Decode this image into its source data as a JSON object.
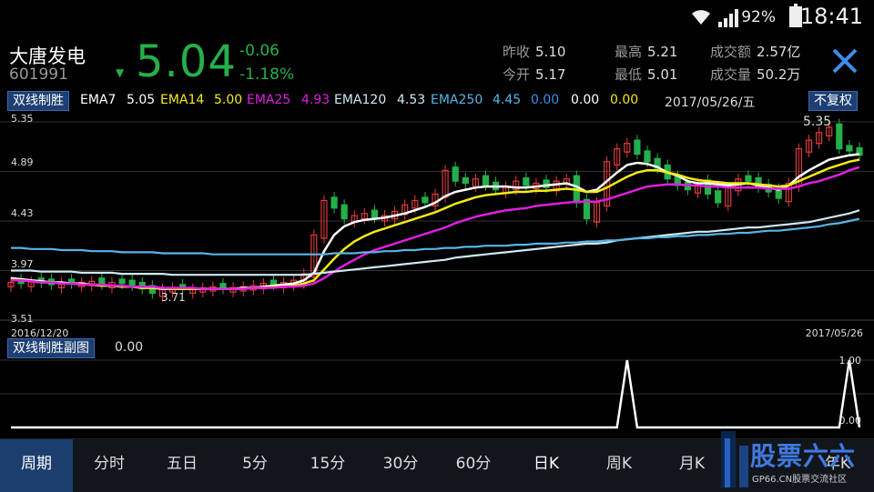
{
  "status_bar": {
    "battery": "92%",
    "time": "18:41"
  },
  "stock": {
    "name": "大唐发电",
    "code": "601991",
    "price": "5.04",
    "change": "-0.06",
    "change_pct": "-1.18%"
  },
  "quote": {
    "prev_close_label": "昨收",
    "prev_close": "5.10",
    "open_label": "今开",
    "open": "5.17",
    "high_label": "最高",
    "high": "5.21",
    "low_label": "最低",
    "low": "5.01",
    "amount_label": "成交额",
    "amount": "2.57亿",
    "volume_label": "成交量",
    "volume": "50.2万"
  },
  "indicator_bar": {
    "name": "双线制胜",
    "ema7_label": "EMA7",
    "ema7": "5.05",
    "ema14_label": "EMA14",
    "ema14": "5.00",
    "ema25_label": "EMA25",
    "ema25": "4.93",
    "ema120_label": "EMA120",
    "ema120": "4.53",
    "ema250_label": "EMA250",
    "ema250": "4.45",
    "extra1": "0.00",
    "extra2": "0.00",
    "extra3": "0.00",
    "date": "2017/05/26/五",
    "adjust_button": "不复权"
  },
  "colors": {
    "up": "#e03b3b",
    "down": "#24b04a",
    "ema7": "#ffffff",
    "ema14": "#f5ea14",
    "ema25": "#e01ee0",
    "ema120": "#cfe9f3",
    "ema250": "#58b4e8",
    "accent": "#3f8ee8"
  },
  "chart_data": [
    {
      "type": "candlestick",
      "y_ticks": [
        "5.35",
        "4.89",
        "4.43",
        "3.97",
        "3.51"
      ],
      "ylim": [
        3.51,
        5.35
      ],
      "x_start": "2016/12/20",
      "x_end": "2017/05/26",
      "low_annotation": "3.71",
      "high_annotation": "5.35",
      "series": [
        {
          "name": "EMA7",
          "values": [
            3.9,
            3.89,
            3.88,
            3.87,
            3.86,
            3.86,
            3.85,
            3.85,
            3.84,
            3.83,
            3.83,
            3.82,
            3.82,
            3.81,
            3.81,
            3.8,
            3.8,
            3.8,
            3.8,
            3.8,
            3.8,
            3.8,
            3.8,
            3.81,
            3.81,
            3.82,
            3.83,
            3.84,
            3.85,
            3.88,
            3.95,
            4.15,
            4.3,
            4.38,
            4.42,
            4.44,
            4.45,
            4.46,
            4.48,
            4.5,
            4.53,
            4.56,
            4.6,
            4.66,
            4.7,
            4.72,
            4.74,
            4.75,
            4.75,
            4.75,
            4.74,
            4.74,
            4.75,
            4.76,
            4.77,
            4.78,
            4.75,
            4.7,
            4.72,
            4.8,
            4.88,
            4.95,
            4.97,
            4.96,
            4.93,
            4.88,
            4.85,
            4.8,
            4.78,
            4.78,
            4.77,
            4.76,
            4.77,
            4.78,
            4.76,
            4.74,
            4.72,
            4.76,
            4.84,
            4.9,
            4.95,
            5.0,
            5.02,
            5.04,
            5.05
          ]
        },
        {
          "name": "EMA14",
          "values": [
            3.89,
            3.88,
            3.87,
            3.86,
            3.86,
            3.85,
            3.85,
            3.84,
            3.84,
            3.83,
            3.83,
            3.82,
            3.82,
            3.81,
            3.81,
            3.81,
            3.8,
            3.8,
            3.8,
            3.8,
            3.8,
            3.8,
            3.8,
            3.8,
            3.81,
            3.81,
            3.82,
            3.82,
            3.83,
            3.85,
            3.88,
            3.98,
            4.08,
            4.17,
            4.24,
            4.29,
            4.33,
            4.36,
            4.39,
            4.42,
            4.45,
            4.48,
            4.51,
            4.55,
            4.59,
            4.62,
            4.65,
            4.67,
            4.68,
            4.69,
            4.7,
            4.7,
            4.71,
            4.71,
            4.72,
            4.73,
            4.72,
            4.7,
            4.7,
            4.74,
            4.79,
            4.84,
            4.88,
            4.9,
            4.9,
            4.88,
            4.86,
            4.83,
            4.81,
            4.8,
            4.79,
            4.78,
            4.78,
            4.78,
            4.77,
            4.76,
            4.75,
            4.76,
            4.8,
            4.84,
            4.88,
            4.92,
            4.95,
            4.98,
            5.0
          ]
        },
        {
          "name": "EMA25",
          "values": [
            3.88,
            3.88,
            3.87,
            3.86,
            3.86,
            3.85,
            3.85,
            3.84,
            3.84,
            3.84,
            3.83,
            3.83,
            3.82,
            3.82,
            3.82,
            3.81,
            3.81,
            3.81,
            3.81,
            3.8,
            3.8,
            3.8,
            3.8,
            3.8,
            3.81,
            3.81,
            3.81,
            3.82,
            3.82,
            3.83,
            3.85,
            3.9,
            3.96,
            4.02,
            4.07,
            4.12,
            4.16,
            4.19,
            4.22,
            4.25,
            4.28,
            4.31,
            4.34,
            4.37,
            4.41,
            4.44,
            4.47,
            4.49,
            4.51,
            4.53,
            4.54,
            4.55,
            4.57,
            4.58,
            4.59,
            4.6,
            4.61,
            4.61,
            4.61,
            4.63,
            4.66,
            4.69,
            4.72,
            4.75,
            4.76,
            4.77,
            4.77,
            4.76,
            4.76,
            4.75,
            4.75,
            4.74,
            4.74,
            4.74,
            4.74,
            4.73,
            4.73,
            4.73,
            4.75,
            4.78,
            4.8,
            4.83,
            4.86,
            4.9,
            4.93
          ]
        },
        {
          "name": "EMA120",
          "values": [
            3.97,
            3.97,
            3.97,
            3.96,
            3.96,
            3.96,
            3.96,
            3.95,
            3.95,
            3.95,
            3.95,
            3.94,
            3.94,
            3.94,
            3.94,
            3.94,
            3.93,
            3.93,
            3.93,
            3.93,
            3.93,
            3.93,
            3.93,
            3.93,
            3.93,
            3.93,
            3.93,
            3.93,
            3.93,
            3.93,
            3.94,
            3.95,
            3.96,
            3.97,
            3.98,
            3.99,
            4.0,
            4.01,
            4.02,
            4.03,
            4.04,
            4.05,
            4.06,
            4.07,
            4.09,
            4.1,
            4.11,
            4.12,
            4.13,
            4.14,
            4.15,
            4.16,
            4.17,
            4.18,
            4.19,
            4.2,
            4.21,
            4.22,
            4.22,
            4.23,
            4.25,
            4.26,
            4.27,
            4.28,
            4.29,
            4.3,
            4.31,
            4.32,
            4.33,
            4.33,
            4.34,
            4.35,
            4.36,
            4.37,
            4.37,
            4.38,
            4.39,
            4.4,
            4.41,
            4.42,
            4.44,
            4.46,
            4.48,
            4.5,
            4.53
          ]
        },
        {
          "name": "EMA250",
          "values": [
            4.18,
            4.18,
            4.17,
            4.17,
            4.17,
            4.16,
            4.16,
            4.16,
            4.15,
            4.15,
            4.15,
            4.14,
            4.14,
            4.14,
            4.14,
            4.13,
            4.13,
            4.13,
            4.13,
            4.13,
            4.12,
            4.12,
            4.12,
            4.12,
            4.12,
            4.12,
            4.12,
            4.12,
            4.12,
            4.12,
            4.12,
            4.12,
            4.13,
            4.13,
            4.13,
            4.14,
            4.14,
            4.15,
            4.15,
            4.16,
            4.16,
            4.17,
            4.17,
            4.18,
            4.18,
            4.19,
            4.19,
            4.2,
            4.2,
            4.2,
            4.21,
            4.21,
            4.22,
            4.22,
            4.22,
            4.23,
            4.23,
            4.24,
            4.24,
            4.25,
            4.25,
            4.26,
            4.27,
            4.27,
            4.28,
            4.28,
            4.29,
            4.29,
            4.3,
            4.3,
            4.31,
            4.31,
            4.32,
            4.32,
            4.33,
            4.34,
            4.34,
            4.35,
            4.36,
            4.37,
            4.38,
            4.4,
            4.41,
            4.43,
            4.45
          ]
        }
      ],
      "candles_close": [
        3.86,
        3.85,
        3.87,
        3.86,
        3.84,
        3.86,
        3.85,
        3.86,
        3.87,
        3.84,
        3.86,
        3.85,
        3.83,
        3.8,
        3.76,
        3.8,
        3.81,
        3.8,
        3.8,
        3.81,
        3.82,
        3.8,
        3.81,
        3.82,
        3.83,
        3.85,
        3.84,
        3.86,
        3.88,
        3.94,
        4.3,
        4.62,
        4.55,
        4.45,
        4.48,
        4.5,
        4.46,
        4.48,
        4.52,
        4.58,
        4.62,
        4.6,
        4.68,
        4.9,
        4.8,
        4.78,
        4.82,
        4.76,
        4.72,
        4.75,
        4.8,
        4.76,
        4.78,
        4.74,
        4.8,
        4.82,
        4.6,
        4.45,
        4.6,
        4.98,
        5.1,
        5.15,
        5.05,
        4.98,
        4.92,
        4.82,
        4.76,
        4.72,
        4.78,
        4.68,
        4.6,
        4.74,
        4.82,
        4.8,
        4.74,
        4.7,
        4.64,
        4.78,
        5.1,
        5.18,
        5.25,
        5.3,
        5.1,
        5.08,
        5.04
      ],
      "candles_up": [
        1,
        0,
        1,
        0,
        0,
        1,
        0,
        1,
        1,
        0,
        1,
        0,
        0,
        0,
        0,
        1,
        1,
        0,
        1,
        1,
        1,
        0,
        1,
        1,
        1,
        1,
        0,
        1,
        1,
        1,
        1,
        1,
        0,
        0,
        1,
        1,
        0,
        1,
        1,
        1,
        1,
        0,
        1,
        1,
        0,
        0,
        1,
        0,
        0,
        1,
        1,
        0,
        1,
        0,
        1,
        1,
        0,
        0,
        1,
        1,
        1,
        1,
        0,
        0,
        0,
        0,
        0,
        0,
        1,
        0,
        0,
        1,
        1,
        0,
        0,
        0,
        0,
        1,
        1,
        1,
        1,
        1,
        0,
        0,
        0
      ]
    },
    {
      "type": "line",
      "name": "双线制胜副图",
      "current_value": "0.00",
      "y_ticks": [
        "1.00",
        "0.00"
      ],
      "ylim": [
        0,
        1
      ],
      "spike_indices": [
        61,
        83
      ],
      "length": 85
    }
  ],
  "nav": {
    "period_label": "周期",
    "tabs": [
      "分时",
      "五日",
      "5分",
      "15分",
      "30分",
      "60分",
      "日K",
      "周K",
      "月K",
      "年K"
    ],
    "selected": "日K"
  },
  "watermark": {
    "title": "股票六六",
    "subtitle": "GP66.CN股票交流社区"
  }
}
